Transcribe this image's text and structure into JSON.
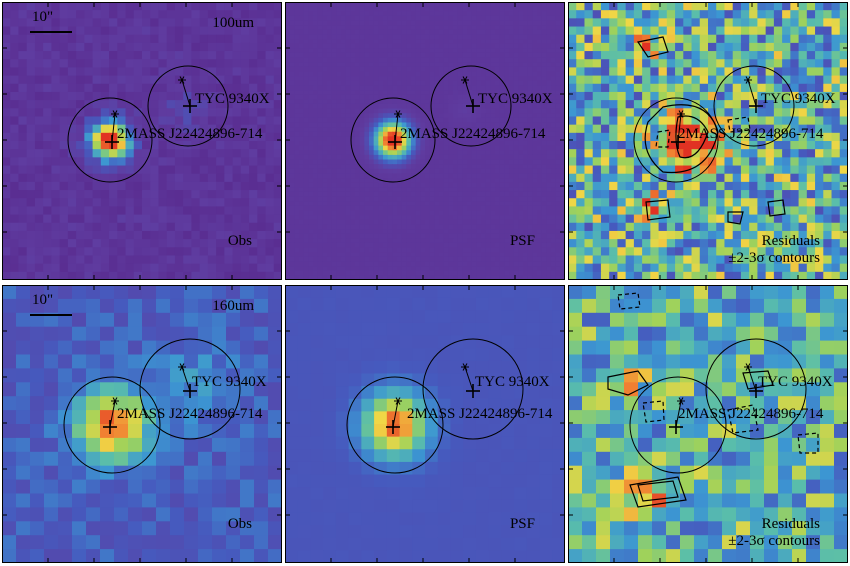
{
  "scale_bar_label": "10\"",
  "sources": {
    "primary": "2MASS J22424896-714",
    "secondary": "TYC 9340X"
  },
  "rows": [
    {
      "band": "100um",
      "panels": [
        {
          "kind": "obs",
          "label": "Obs"
        },
        {
          "kind": "psf",
          "label": "PSF"
        },
        {
          "kind": "resid",
          "label": "Residuals",
          "sublabel": "±2-3σ contours"
        }
      ]
    },
    {
      "band": "160um",
      "panels": [
        {
          "kind": "obs",
          "label": "Obs"
        },
        {
          "kind": "psf",
          "label": "PSF"
        },
        {
          "kind": "resid",
          "label": "Residuals",
          "sublabel": "±2-3σ contours"
        }
      ]
    }
  ],
  "colors": {
    "low": "#5a2f8c",
    "mid": "#3fa0d6",
    "high": "#e8452a",
    "frame": "#000000"
  }
}
